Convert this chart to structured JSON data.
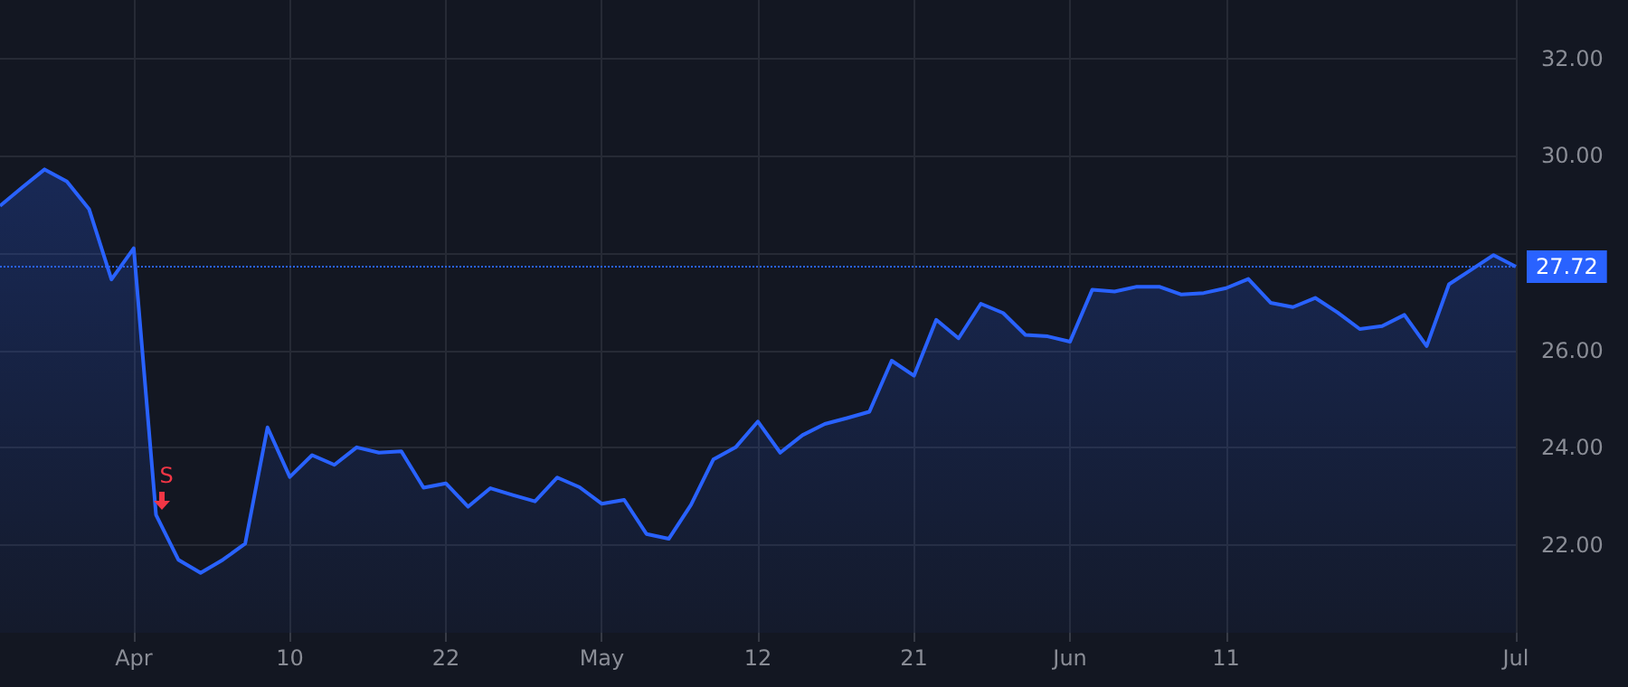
{
  "chart_data": {
    "type": "area",
    "categories": [
      null,
      null,
      null,
      null,
      null,
      null,
      "Apr",
      null,
      null,
      null,
      null,
      null,
      null,
      "10",
      null,
      null,
      null,
      null,
      null,
      null,
      "22",
      null,
      null,
      null,
      null,
      null,
      null,
      "May",
      null,
      null,
      null,
      null,
      null,
      null,
      "12",
      null,
      null,
      null,
      null,
      null,
      null,
      "21",
      null,
      null,
      null,
      null,
      null,
      null,
      "Jun",
      null,
      null,
      null,
      null,
      null,
      null,
      "11",
      null,
      null,
      null,
      null,
      null,
      null,
      null,
      null,
      null,
      null,
      null,
      null,
      "Jul"
    ],
    "series": [
      {
        "color": "#2962ff",
        "values": [
          28.97,
          29.35,
          29.72,
          29.47,
          28.9,
          27.46,
          28.1,
          22.62,
          21.7,
          21.43,
          21.7,
          22.03,
          24.42,
          23.4,
          23.85,
          23.65,
          24.01,
          23.9,
          23.93,
          23.18,
          23.27,
          22.79,
          23.17,
          23.03,
          22.9,
          23.39,
          23.19,
          22.85,
          22.93,
          22.23,
          22.13,
          22.83,
          23.76,
          24.01,
          24.54,
          23.9,
          24.26,
          24.49,
          24.61,
          24.74,
          25.79,
          25.48,
          26.63,
          26.25,
          26.96,
          26.77,
          26.32,
          26.29,
          26.18,
          27.25,
          27.21,
          27.31,
          27.31,
          27.15,
          27.18,
          27.28,
          27.47,
          26.98,
          26.89,
          27.08,
          26.78,
          26.44,
          26.5,
          26.73,
          26.09,
          27.36,
          27.66,
          27.96,
          27.72
        ]
      }
    ],
    "ylim": [
      20.2,
      33.2
    ],
    "yticks": [
      {
        "value": 22,
        "label": "22.00"
      },
      {
        "value": 24,
        "label": "24.00"
      },
      {
        "value": 26,
        "label": "26.00"
      },
      {
        "value": 28,
        "label": null
      },
      {
        "value": 30,
        "label": "30.00"
      },
      {
        "value": 32,
        "label": "32.00"
      }
    ],
    "ref_lines": [
      {
        "axis": "y",
        "value": 27.72,
        "label": "27.72",
        "color": "#2962ff",
        "line_style": "dotted"
      }
    ],
    "annotations": [
      {
        "text": "S",
        "y": 22.62
      }
    ],
    "grid": true,
    "marker": "none",
    "line_style": "solid"
  }
}
